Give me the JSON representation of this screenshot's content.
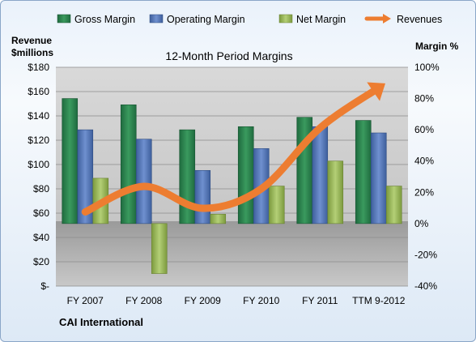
{
  "chart_data": {
    "type": "bar",
    "title": "12-Month Period Margins",
    "company": "CAI International",
    "left_axis_label": [
      "Revenue",
      "$millions"
    ],
    "right_axis_label": "Margin %",
    "categories": [
      "FY 2007",
      "FY 2008",
      "FY 2009",
      "FY 2010",
      "FY 2011",
      "TTM 9-2012"
    ],
    "left_axis": {
      "min": 0,
      "max": 180,
      "step": 20,
      "tick_labels": [
        "$-",
        "$20",
        "$40",
        "$60",
        "$80",
        "$100",
        "$120",
        "$140",
        "$160",
        "$180"
      ]
    },
    "right_axis": {
      "min": -40,
      "max": 100,
      "step": 20,
      "tick_labels": [
        "-40%",
        "-20%",
        "0%",
        "20%",
        "40%",
        "60%",
        "80%",
        "100%"
      ]
    },
    "bar_series": [
      {
        "name": "Gross Margin",
        "color": "#2e8b57",
        "values": [
          80,
          76,
          60,
          62,
          68,
          66
        ]
      },
      {
        "name": "Operating Margin",
        "color": "#5b7fc0",
        "values": [
          60,
          54,
          34,
          48,
          62,
          58
        ]
      },
      {
        "name": "Net Margin",
        "color": "#9bbb59",
        "values": [
          29,
          -32,
          6,
          24,
          40,
          24
        ]
      }
    ],
    "line_series": {
      "name": "Revenues",
      "color": "#ed7d31",
      "values": [
        61,
        82,
        64,
        80,
        130,
        163
      ]
    },
    "legend_position": "top",
    "grid": true
  }
}
